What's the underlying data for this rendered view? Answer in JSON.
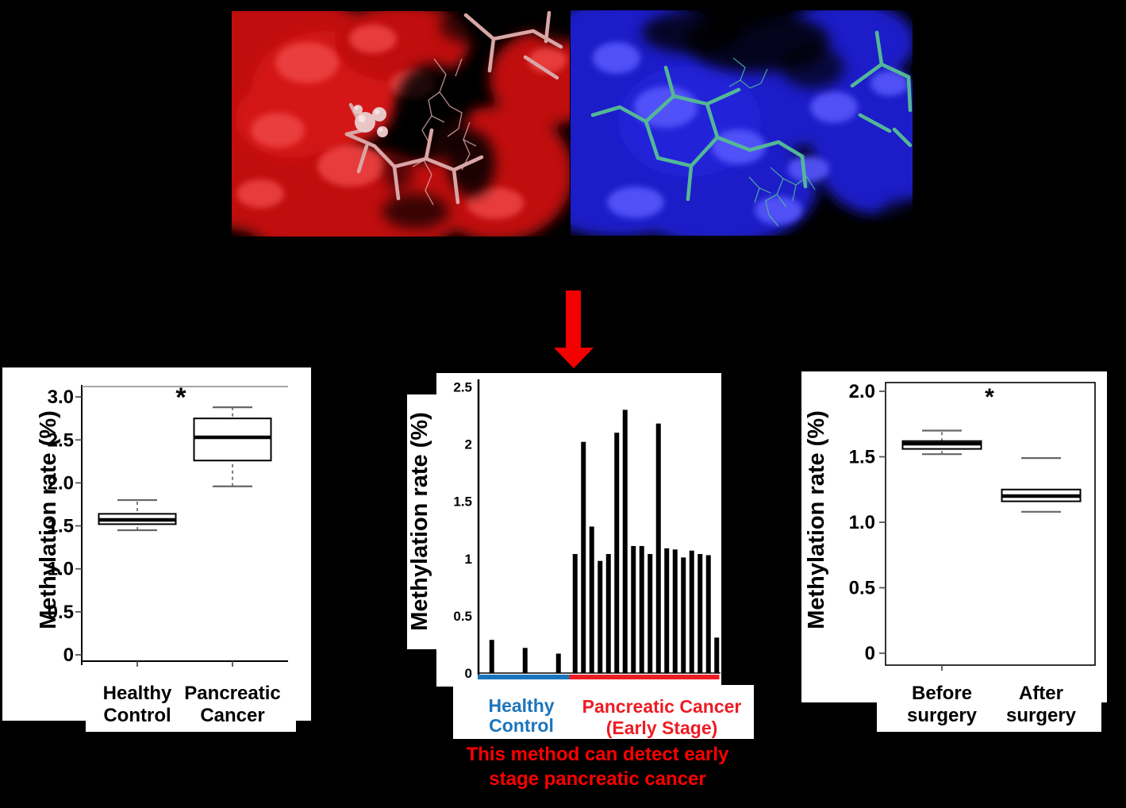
{
  "background_color": "#000000",
  "molecule_panels": {
    "left": {
      "name": "protein-surface-red-pocket",
      "surface_color": "#c00d0d",
      "surface_dark": "#3a0000",
      "surface_light": "#ef4545",
      "stick_color": "#d9a6a6",
      "sphere_color": "#e9c6c6"
    },
    "right": {
      "name": "protein-surface-blue-pocket",
      "surface_color": "#1a1ac8",
      "surface_dark": "#000040",
      "surface_light": "#5a5aff",
      "stick_color": "#53b797"
    }
  },
  "arrow": {
    "direction": "down",
    "color": "#f40000"
  },
  "chart_data": [
    {
      "type": "box",
      "title": "",
      "ylabel": "Methylation rate (%)",
      "ylim": [
        0,
        3.15
      ],
      "yticks": [
        {
          "v": 0,
          "label": "0"
        },
        {
          "v": 0.5,
          "label": "0.5"
        },
        {
          "v": 1.0,
          "label": "1.0"
        },
        {
          "v": 1.5,
          "label": "1.5"
        },
        {
          "v": 2.0,
          "label": "2.0"
        },
        {
          "v": 2.5,
          "label": "2.5"
        },
        {
          "v": 3.0,
          "label": "3.0"
        }
      ],
      "significance": "*",
      "top_reference_line": true,
      "boxes": [
        {
          "label_lines": [
            "Healthy",
            "Control"
          ],
          "whisker_low": 1.45,
          "q1": 1.52,
          "median": 1.57,
          "q3": 1.64,
          "whisker_high": 1.8,
          "stem": true
        },
        {
          "label_lines": [
            "Pancreatic",
            "Cancer"
          ],
          "whisker_low": 1.96,
          "q1": 2.26,
          "median": 2.53,
          "q3": 2.75,
          "whisker_high": 2.88,
          "stem": true
        }
      ]
    },
    {
      "type": "bar",
      "title": "",
      "ylabel": "Methylation rate (%)",
      "ylim": [
        0,
        2.56
      ],
      "yticks": [
        {
          "v": 0,
          "label": "0"
        },
        {
          "v": 0.5,
          "label": "0.5"
        },
        {
          "v": 1.0,
          "label": "1"
        },
        {
          "v": 1.5,
          "label": "1.5"
        },
        {
          "v": 2.0,
          "label": "2"
        },
        {
          "v": 2.5,
          "label": "2.5"
        }
      ],
      "bar_color": "#000000",
      "groups": [
        {
          "label_lines": [
            "Healthy",
            "Control"
          ],
          "label_color": "#1b75bc",
          "underline_color": "#1b75bc",
          "values": [
            0,
            0.29,
            0,
            0,
            0,
            0.22,
            0,
            0,
            0,
            0.17,
            0
          ]
        },
        {
          "label_lines": [
            "Pancreatic Cancer",
            "(Early Stage)"
          ],
          "label_color": "#ec1c24",
          "underline_color": "#ec1c24",
          "values": [
            1.04,
            2.02,
            1.28,
            0.98,
            1.04,
            2.1,
            2.3,
            1.11,
            1.11,
            1.04,
            2.18,
            1.09,
            1.08,
            1.01,
            1.07,
            1.04,
            1.03,
            0.31
          ]
        }
      ],
      "caption_lines": [
        "This method can detect early",
        "stage pancreatic cancer"
      ],
      "caption_color": "#ff0000"
    },
    {
      "type": "box",
      "title": "",
      "ylabel": "Methylation rate (%)",
      "ylim": [
        0,
        2.07
      ],
      "yticks": [
        {
          "v": 0,
          "label": "0"
        },
        {
          "v": 0.5,
          "label": "0.5"
        },
        {
          "v": 1.0,
          "label": "1.0"
        },
        {
          "v": 1.5,
          "label": "1.5"
        },
        {
          "v": 2.0,
          "label": "2.0"
        }
      ],
      "significance": "*",
      "frame": "box",
      "boxes": [
        {
          "label_lines": [
            "Before",
            "surgery"
          ],
          "whisker_low": 1.52,
          "q1": 1.56,
          "median": 1.6,
          "q3": 1.62,
          "whisker_high": 1.7,
          "stem": true
        },
        {
          "label_lines": [
            "After",
            "surgery"
          ],
          "whisker_low": 1.08,
          "q1": 1.16,
          "median": 1.2,
          "q3": 1.25,
          "whisker_high": 1.49,
          "stem": false
        }
      ]
    }
  ]
}
